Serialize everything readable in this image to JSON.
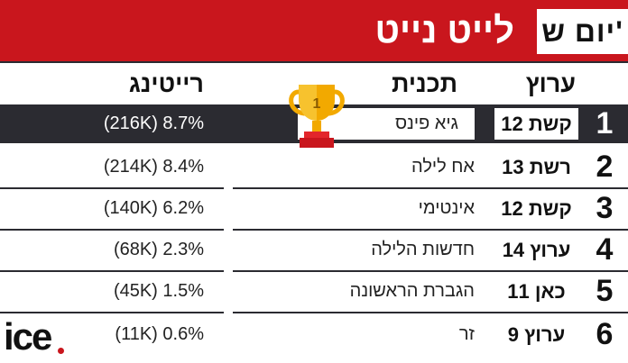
{
  "header": {
    "day": "יום ש'",
    "program": "לייט נייט"
  },
  "columns": {
    "channel": "ערוץ",
    "show": "תכנית",
    "rating": "רייטינג"
  },
  "trophy_label": "1",
  "rows": [
    {
      "rank": "1",
      "channel": "קשת 12",
      "show": "גיא פינס",
      "rating": "(216K) 8.7%"
    },
    {
      "rank": "2",
      "channel": "רשת 13",
      "show": "אח לילה",
      "rating": "(214K) 8.4%"
    },
    {
      "rank": "3",
      "channel": "קשת 12",
      "show": "אינטימי",
      "rating": "(140K) 6.2%"
    },
    {
      "rank": "4",
      "channel": "ערוץ 14",
      "show": "חדשות הלילה",
      "rating": "(68K) 2.3%"
    },
    {
      "rank": "5",
      "channel": "כאן 11",
      "show": "הגברת הראשונה",
      "rating": "(45K) 1.5%"
    },
    {
      "rank": "6",
      "channel": "ערוץ 9",
      "show": "זר",
      "rating": "(11K) 0.6%"
    }
  ],
  "logo": "ice",
  "colors": {
    "accent": "#c9161d",
    "dark_row": "#2b2b31"
  }
}
